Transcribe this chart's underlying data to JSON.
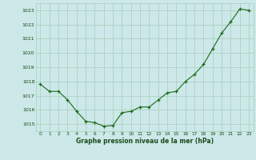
{
  "x": [
    0,
    1,
    2,
    3,
    4,
    5,
    6,
    7,
    8,
    9,
    10,
    11,
    12,
    13,
    14,
    15,
    16,
    17,
    18,
    19,
    20,
    21,
    22,
    23
  ],
  "y": [
    1017.8,
    1017.3,
    1017.3,
    1016.7,
    1015.9,
    1015.2,
    1015.1,
    1014.85,
    1014.9,
    1015.8,
    1015.9,
    1016.2,
    1016.2,
    1016.7,
    1017.2,
    1017.3,
    1018.0,
    1018.5,
    1019.2,
    1020.3,
    1021.4,
    1022.2,
    1023.1,
    1023.0
  ],
  "line_color": "#1a6b1a",
  "marker_color": "#1a6b1a",
  "bg_color": "#cce8e8",
  "grid_color": "#aaccbb",
  "xlabel": "Graphe pression niveau de la mer (hPa)",
  "xlabel_color": "#1a4a1a",
  "tick_color": "#1a4a1a",
  "ylim": [
    1014.5,
    1023.5
  ],
  "yticks": [
    1015,
    1016,
    1017,
    1018,
    1019,
    1020,
    1021,
    1022,
    1023
  ],
  "xticks": [
    0,
    1,
    2,
    3,
    4,
    5,
    6,
    7,
    8,
    9,
    10,
    11,
    12,
    13,
    14,
    15,
    16,
    17,
    18,
    19,
    20,
    21,
    22,
    23
  ]
}
